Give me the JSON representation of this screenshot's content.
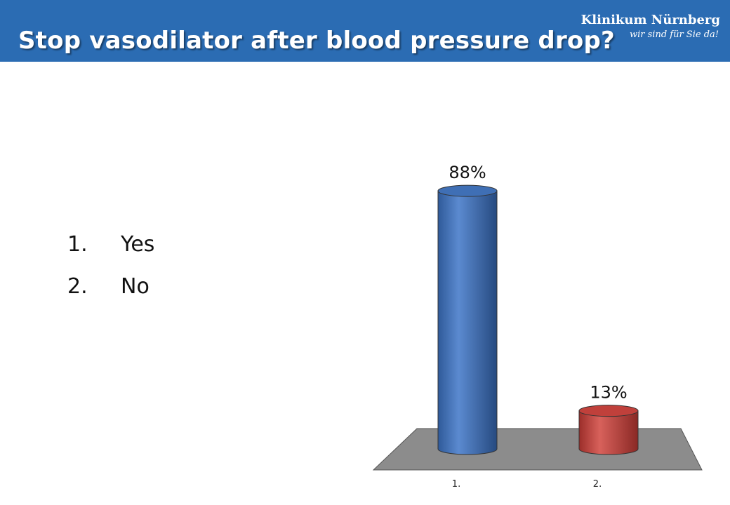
{
  "header": {
    "title": "Stop vasodilator after blood pressure drop?",
    "logo_name": "Klinikum Nürnberg",
    "logo_tagline": "wir sind für Sie da!",
    "background_color": "#2b6cb3"
  },
  "options": [
    {
      "number": "1.",
      "label": "Yes"
    },
    {
      "number": "2.",
      "label": "No"
    }
  ],
  "chart_data": {
    "type": "bar",
    "style": "3d-cylinder",
    "categories": [
      "1.",
      "2."
    ],
    "values": [
      88,
      13
    ],
    "value_labels": [
      "88%",
      "13%"
    ],
    "unit": "%",
    "ylim": [
      0,
      100
    ],
    "grid": false,
    "legend": "none",
    "colors": [
      "#3f6fb5",
      "#c0403b"
    ],
    "floor_color": "#8c8c8c"
  }
}
